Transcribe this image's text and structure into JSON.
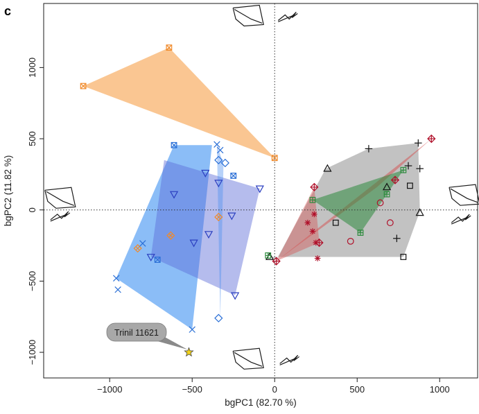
{
  "panel_label": "c",
  "chart_data": {
    "type": "scatter",
    "xlabel": "bgPC1 (82.70 %)",
    "ylabel": "bgPC2 (11.82 %)",
    "xlim": [
      -1400,
      1230
    ],
    "ylim": [
      -1180,
      1450
    ],
    "xticks": [
      -1000,
      -500,
      0,
      500,
      1000
    ],
    "yticks": [
      -1000,
      -500,
      0,
      500,
      1000
    ],
    "xtick_labels": [
      "−1000",
      "−500",
      "0",
      "500",
      "1000"
    ],
    "ytick_labels": [
      "−1000",
      "−500",
      "0",
      "500",
      "1000"
    ],
    "zero_lines": "dotted",
    "grid": false,
    "hulls": [
      {
        "fill": "#f7a04a",
        "opacity": 0.6,
        "points": [
          [
            -640,
            1140
          ],
          [
            -1160,
            870
          ],
          [
            0,
            365
          ]
        ]
      },
      {
        "fill": "#2b86f0",
        "opacity": 0.55,
        "points": [
          [
            -610,
            455
          ],
          [
            -380,
            455
          ],
          [
            -500,
            -840
          ],
          [
            -960,
            -480
          ]
        ]
      },
      {
        "fill": "#5c6bd6",
        "opacity": 0.45,
        "points": [
          [
            -670,
            350
          ],
          [
            -90,
            150
          ],
          [
            -240,
            -600
          ],
          [
            -750,
            -330
          ]
        ]
      },
      {
        "fill": "#4a8ef0",
        "opacity": 0.4,
        "points": [
          [
            -350,
            460
          ],
          [
            -310,
            320
          ],
          [
            -330,
            -760
          ]
        ]
      },
      {
        "fill": "#9a9a9a",
        "opacity": 0.6,
        "points": [
          [
            570,
            430
          ],
          [
            870,
            470
          ],
          [
            880,
            -10
          ],
          [
            780,
            -330
          ],
          [
            -30,
            -330
          ],
          [
            10,
            -350
          ],
          [
            310,
            290
          ]
        ]
      },
      {
        "fill": "#d45a5a",
        "opacity": 0.55,
        "points": [
          [
            950,
            500
          ],
          [
            620,
            160
          ],
          [
            10,
            -360
          ]
        ]
      },
      {
        "fill": "#2e8b3e",
        "opacity": 0.55,
        "points": [
          [
            780,
            280
          ],
          [
            230,
            70
          ],
          [
            520,
            -160
          ],
          [
            680,
            110
          ]
        ]
      },
      {
        "fill": "#d45a5a",
        "opacity": 0.45,
        "points": [
          [
            240,
            160
          ],
          [
            10,
            -360
          ],
          [
            270,
            -230
          ]
        ]
      }
    ],
    "series": [
      {
        "marker": "square-x",
        "color": "#f08a2a",
        "points": [
          [
            -640,
            1140
          ],
          [
            -1160,
            870
          ],
          [
            0,
            365
          ]
        ]
      },
      {
        "marker": "diamond-x",
        "color": "#f08a2a",
        "points": [
          [
            -830,
            -270
          ],
          [
            -630,
            -180
          ],
          [
            -340,
            -50
          ]
        ]
      },
      {
        "marker": "square-x",
        "color": "#2a6fd6",
        "points": [
          [
            -610,
            455
          ],
          [
            -250,
            240
          ],
          [
            -710,
            -350
          ]
        ]
      },
      {
        "marker": "x",
        "color": "#2a6fd6",
        "points": [
          [
            -350,
            460
          ],
          [
            -330,
            420
          ],
          [
            -800,
            -235
          ],
          [
            -960,
            -480
          ],
          [
            -950,
            -560
          ],
          [
            -500,
            -840
          ]
        ]
      },
      {
        "marker": "diamond",
        "color": "#2a6fd6",
        "points": [
          [
            -340,
            350
          ],
          [
            -300,
            330
          ],
          [
            -340,
            -760
          ]
        ]
      },
      {
        "marker": "triangle-down",
        "color": "#2b3fc0",
        "points": [
          [
            -610,
            110
          ],
          [
            -420,
            260
          ],
          [
            -340,
            190
          ],
          [
            -90,
            150
          ],
          [
            -260,
            -40
          ],
          [
            -400,
            -170
          ],
          [
            -490,
            -230
          ],
          [
            -750,
            -330
          ],
          [
            -240,
            -600
          ]
        ]
      },
      {
        "marker": "plus",
        "color": "#111111",
        "points": [
          [
            570,
            430
          ],
          [
            870,
            470
          ],
          [
            810,
            310
          ],
          [
            880,
            290
          ],
          [
            740,
            -200
          ]
        ]
      },
      {
        "marker": "triangle",
        "color": "#111111",
        "points": [
          [
            320,
            290
          ],
          [
            680,
            160
          ],
          [
            -30,
            -330
          ],
          [
            880,
            -20
          ]
        ]
      },
      {
        "marker": "square",
        "color": "#111111",
        "points": [
          [
            820,
            170
          ],
          [
            370,
            -90
          ],
          [
            780,
            -330
          ]
        ]
      },
      {
        "marker": "diamond-plus",
        "color": "#b0102a",
        "points": [
          [
            950,
            500
          ],
          [
            240,
            160
          ],
          [
            730,
            210
          ],
          [
            270,
            -230
          ],
          [
            10,
            -360
          ]
        ]
      },
      {
        "marker": "asterisk",
        "color": "#b0102a",
        "points": [
          [
            200,
            -90
          ],
          [
            240,
            -30
          ],
          [
            230,
            -150
          ],
          [
            250,
            -230
          ],
          [
            260,
            -340
          ]
        ]
      },
      {
        "marker": "circle",
        "color": "#b0102a",
        "points": [
          [
            640,
            50
          ],
          [
            700,
            -90
          ],
          [
            460,
            -220
          ]
        ]
      },
      {
        "marker": "square-plus",
        "color": "#2e8b3e",
        "points": [
          [
            230,
            70
          ],
          [
            780,
            280
          ],
          [
            680,
            110
          ],
          [
            520,
            -160
          ],
          [
            -40,
            -320
          ]
        ]
      }
    ],
    "special_point": {
      "label": "Trinil 11621",
      "marker": "star",
      "color": "#f2d21a",
      "x": -520,
      "y": -1000
    },
    "shape_icons": [
      {
        "name": "top-shape-icon",
        "x": -160,
        "y": 1360
      },
      {
        "name": "top-shape-small-icon",
        "x": 80,
        "y": 1360
      },
      {
        "name": "left-shape-icon",
        "x": -1300,
        "y": 80
      },
      {
        "name": "left-shape-small-icon",
        "x": -1300,
        "y": -40
      },
      {
        "name": "right-shape-icon",
        "x": 1150,
        "y": 100
      },
      {
        "name": "right-shape-small-icon",
        "x": 1130,
        "y": -60
      },
      {
        "name": "bottom-shape-icon",
        "x": -160,
        "y": -1050
      },
      {
        "name": "bottom-shape-small-icon",
        "x": 90,
        "y": -1050
      }
    ]
  }
}
